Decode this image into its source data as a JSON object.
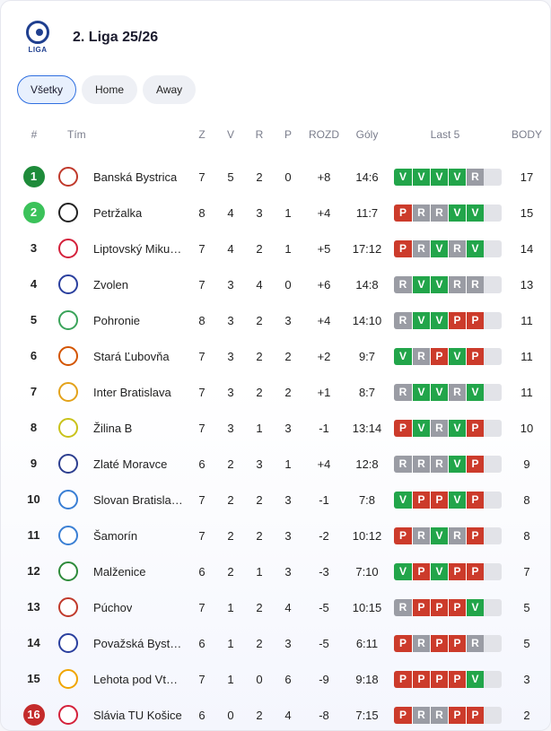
{
  "header": {
    "title": "2. Liga 25/26",
    "logo_text": "LIGA"
  },
  "tabs": [
    {
      "label": "Všetky",
      "active": true
    },
    {
      "label": "Home",
      "active": false
    },
    {
      "label": "Away",
      "active": false
    }
  ],
  "columns": {
    "rank": "#",
    "team": "Tím",
    "z": "Z",
    "v": "V",
    "r": "R",
    "p": "P",
    "rozd": "ROZD",
    "goly": "Góly",
    "last5": "Last 5",
    "body": "BODY"
  },
  "form_letters": {
    "W": "V",
    "D": "R",
    "L": "P"
  },
  "colors": {
    "win": "#22a54a",
    "draw": "#9a9ca4",
    "loss": "#cc3b2b",
    "promo1": "#1e8b3a",
    "promo2": "#3bc25a",
    "relegation": "#c42b2b"
  },
  "rows": [
    {
      "rank": "1",
      "team": "Banská Bystrica",
      "z": "7",
      "v": "5",
      "r": "2",
      "p": "0",
      "rozd": "+8",
      "goly": "14:6",
      "form": [
        "W",
        "W",
        "W",
        "W",
        "D"
      ],
      "body": "17",
      "zone": "q1",
      "crest": "#c0392b"
    },
    {
      "rank": "2",
      "team": "Petržalka",
      "z": "8",
      "v": "4",
      "r": "3",
      "p": "1",
      "rozd": "+4",
      "goly": "11:7",
      "form": [
        "L",
        "D",
        "D",
        "W",
        "W"
      ],
      "body": "15",
      "zone": "q2",
      "crest": "#222222"
    },
    {
      "rank": "3",
      "team": "Liptovský Mikuláš",
      "z": "7",
      "v": "4",
      "r": "2",
      "p": "1",
      "rozd": "+5",
      "goly": "17:12",
      "form": [
        "L",
        "D",
        "W",
        "D",
        "W"
      ],
      "body": "14",
      "zone": "",
      "crest": "#d4213b"
    },
    {
      "rank": "4",
      "team": "Zvolen",
      "z": "7",
      "v": "3",
      "r": "4",
      "p": "0",
      "rozd": "+6",
      "goly": "14:8",
      "form": [
        "D",
        "W",
        "W",
        "D",
        "D"
      ],
      "body": "13",
      "zone": "",
      "crest": "#2a3f9e"
    },
    {
      "rank": "5",
      "team": "Pohronie",
      "z": "8",
      "v": "3",
      "r": "2",
      "p": "3",
      "rozd": "+4",
      "goly": "14:10",
      "form": [
        "D",
        "W",
        "W",
        "L",
        "L"
      ],
      "body": "11",
      "zone": "",
      "crest": "#3aa35a"
    },
    {
      "rank": "6",
      "team": "Stará Ľubovňa",
      "z": "7",
      "v": "3",
      "r": "2",
      "p": "2",
      "rozd": "+2",
      "goly": "9:7",
      "form": [
        "W",
        "D",
        "L",
        "W",
        "L"
      ],
      "body": "11",
      "zone": "",
      "crest": "#d35400"
    },
    {
      "rank": "7",
      "team": "Inter Bratislava",
      "z": "7",
      "v": "3",
      "r": "2",
      "p": "2",
      "rozd": "+1",
      "goly": "8:7",
      "form": [
        "D",
        "W",
        "W",
        "D",
        "W"
      ],
      "body": "11",
      "zone": "",
      "crest": "#e3a21a"
    },
    {
      "rank": "8",
      "team": "Žilina B",
      "z": "7",
      "v": "3",
      "r": "1",
      "p": "3",
      "rozd": "-1",
      "goly": "13:14",
      "form": [
        "L",
        "W",
        "D",
        "W",
        "L"
      ],
      "body": "10",
      "zone": "",
      "crest": "#c9c21a"
    },
    {
      "rank": "9",
      "team": "Zlaté Moravce",
      "z": "6",
      "v": "2",
      "r": "3",
      "p": "1",
      "rozd": "+4",
      "goly": "12:8",
      "form": [
        "D",
        "D",
        "D",
        "W",
        "L"
      ],
      "body": "9",
      "zone": "",
      "crest": "#2c3e8f"
    },
    {
      "rank": "10",
      "team": "Slovan Bratislav...",
      "z": "7",
      "v": "2",
      "r": "2",
      "p": "3",
      "rozd": "-1",
      "goly": "7:8",
      "form": [
        "W",
        "L",
        "L",
        "W",
        "L"
      ],
      "body": "8",
      "zone": "",
      "crest": "#3a7fd4"
    },
    {
      "rank": "11",
      "team": "Šamorín",
      "z": "7",
      "v": "2",
      "r": "2",
      "p": "3",
      "rozd": "-2",
      "goly": "10:12",
      "form": [
        "L",
        "D",
        "W",
        "D",
        "L"
      ],
      "body": "8",
      "zone": "",
      "crest": "#3a7fd4"
    },
    {
      "rank": "12",
      "team": "Malženice",
      "z": "6",
      "v": "2",
      "r": "1",
      "p": "3",
      "rozd": "-3",
      "goly": "7:10",
      "form": [
        "W",
        "L",
        "W",
        "L",
        "L"
      ],
      "body": "7",
      "zone": "",
      "crest": "#2e8b3a"
    },
    {
      "rank": "13",
      "team": "Púchov",
      "z": "7",
      "v": "1",
      "r": "2",
      "p": "4",
      "rozd": "-5",
      "goly": "10:15",
      "form": [
        "D",
        "L",
        "L",
        "L",
        "W"
      ],
      "body": "5",
      "zone": "",
      "crest": "#c0392b"
    },
    {
      "rank": "14",
      "team": "Považská Bystrica",
      "z": "6",
      "v": "1",
      "r": "2",
      "p": "3",
      "rozd": "-5",
      "goly": "6:11",
      "form": [
        "L",
        "D",
        "L",
        "L",
        "D"
      ],
      "body": "5",
      "zone": "",
      "crest": "#2a3f9e"
    },
    {
      "rank": "15",
      "team": "Lehota pod Vtáč...",
      "z": "7",
      "v": "1",
      "r": "0",
      "p": "6",
      "rozd": "-9",
      "goly": "9:18",
      "form": [
        "L",
        "L",
        "L",
        "L",
        "W"
      ],
      "body": "3",
      "zone": "",
      "crest": "#f0a500"
    },
    {
      "rank": "16",
      "team": "Slávia TU Košice",
      "z": "6",
      "v": "0",
      "r": "2",
      "p": "4",
      "rozd": "-8",
      "goly": "7:15",
      "form": [
        "L",
        "D",
        "D",
        "L",
        "L"
      ],
      "body": "2",
      "zone": "rel",
      "crest": "#d4213b"
    }
  ]
}
